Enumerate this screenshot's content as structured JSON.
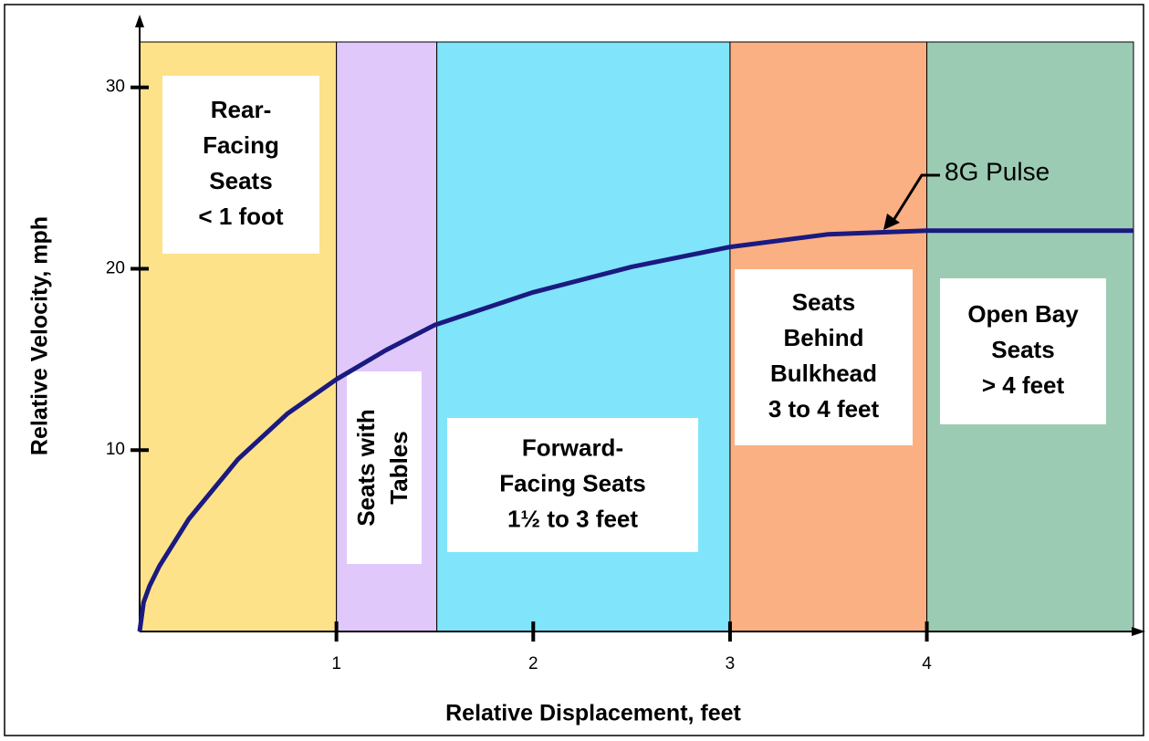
{
  "chart_data": {
    "type": "line",
    "x_label": "Relative Displacement, feet",
    "y_label": "Relative Velocity, mph",
    "annotation": "8G Pulse",
    "xlim": [
      0,
      5.05
    ],
    "ylim": [
      0,
      32.5
    ],
    "xticks": [
      1,
      2,
      3,
      4
    ],
    "yticks": [
      10,
      20,
      30
    ],
    "bands": [
      {
        "range": [
          0,
          1
        ],
        "color": "#fde28a",
        "label": [
          "Rear-",
          "Facing",
          "Seats",
          "< 1 foot"
        ]
      },
      {
        "range": [
          1,
          1.51
        ],
        "color": "#e0c8fa",
        "label": [
          "Seats with",
          "Tables"
        ]
      },
      {
        "range": [
          1.51,
          3
        ],
        "color": "#80e4fb",
        "label": [
          "Forward-",
          "Facing Seats",
          "1½ to 3 feet"
        ]
      },
      {
        "range": [
          3,
          4
        ],
        "color": "#fbb083",
        "label": [
          "Seats",
          "Behind",
          "Bulkhead",
          "3 to 4 feet"
        ]
      },
      {
        "range": [
          4,
          5.05
        ],
        "color": "#9ccbb4",
        "label": [
          "Open Bay",
          "Seats",
          "> 4 feet"
        ]
      }
    ],
    "series": [
      {
        "name": "8G Pulse",
        "color": "#1a1a80",
        "x": [
          0,
          0.02,
          0.05,
          0.1,
          0.25,
          0.5,
          0.75,
          1,
          1.25,
          1.5,
          2,
          2.5,
          3,
          3.5,
          4,
          4.5,
          5.05
        ],
        "values": [
          0,
          1.6,
          2.5,
          3.6,
          6.2,
          9.5,
          12,
          13.9,
          15.5,
          16.9,
          18.7,
          20.1,
          21.2,
          21.9,
          22.1,
          22.1,
          22.1
        ]
      }
    ]
  }
}
